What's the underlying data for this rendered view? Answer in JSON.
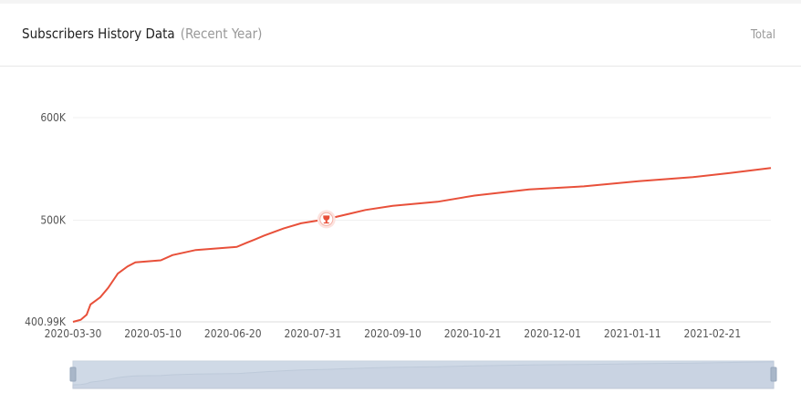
{
  "header": {
    "title": "Subscribers History Data",
    "subtitle": "(Recent Year)",
    "total_label": "Total"
  },
  "chart_data": {
    "type": "line",
    "title": "Subscribers History Data",
    "xlabel": "",
    "ylabel": "",
    "x_ticks": [
      "2020-03-30",
      "2020-05-10",
      "2020-06-20",
      "2020-07-31",
      "2020-09-10",
      "2020-10-21",
      "2020-12-01",
      "2021-01-11",
      "2021-02-21"
    ],
    "y_ticks": [
      {
        "value": 400990,
        "label": "400.99K"
      },
      {
        "value": 500000,
        "label": "500K"
      },
      {
        "value": 600000,
        "label": "600K"
      }
    ],
    "xlim": [
      "2020-03-30",
      "2021-03-23"
    ],
    "ylim": [
      400990,
      600000
    ],
    "grid": true,
    "line_color": "#e8503a",
    "x": [
      "2020-03-30",
      "2020-04-03",
      "2020-04-06",
      "2020-04-08",
      "2020-04-13",
      "2020-04-17",
      "2020-04-22",
      "2020-04-27",
      "2020-05-01",
      "2020-05-14",
      "2020-05-20",
      "2020-06-01",
      "2020-06-22",
      "2020-06-27",
      "2020-07-01",
      "2020-07-06",
      "2020-07-16",
      "2020-07-25",
      "2020-08-07",
      "2020-08-27",
      "2020-09-10",
      "2020-10-03",
      "2020-10-22",
      "2020-11-19",
      "2020-12-17",
      "2021-01-14",
      "2021-02-11",
      "2021-03-02",
      "2021-03-23"
    ],
    "values": [
      401000,
      403000,
      408000,
      418000,
      425000,
      434000,
      448000,
      455000,
      459000,
      461000,
      466000,
      471000,
      474000,
      478000,
      481000,
      485000,
      492000,
      497000,
      501000,
      510000,
      514000,
      518000,
      524000,
      530000,
      533000,
      538000,
      542000,
      546000,
      551000
    ],
    "marker": {
      "icon": "trophy-icon",
      "x": "2020-08-07",
      "value": 501000
    },
    "data_zoom": {
      "start_percent": 0,
      "end_percent": 100
    }
  }
}
